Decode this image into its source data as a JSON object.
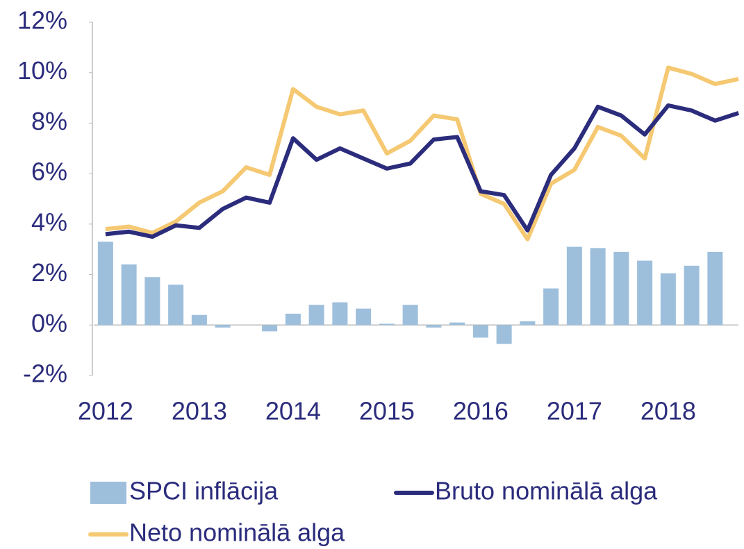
{
  "chart_data": {
    "type": "bar_line",
    "categories": [
      "2012",
      null,
      null,
      null,
      "2013",
      null,
      null,
      null,
      "2014",
      null,
      null,
      null,
      "2015",
      null,
      null,
      null,
      "2016",
      null,
      null,
      null,
      "2017",
      null,
      null,
      null,
      "2018",
      null,
      null,
      null
    ],
    "series": [
      {
        "name": "SPCI inflācija",
        "type": "bar",
        "color": "#9dbfdc",
        "values": [
          3.3,
          2.4,
          1.9,
          1.6,
          0.4,
          -0.1,
          0.0,
          -0.25,
          0.45,
          0.8,
          0.9,
          0.65,
          0.05,
          0.8,
          -0.1,
          0.1,
          -0.5,
          -0.75,
          0.15,
          1.45,
          3.1,
          3.05,
          2.9,
          2.55,
          2.05,
          2.35,
          2.9,
          null
        ]
      },
      {
        "name": "Bruto nominālā alga",
        "type": "line",
        "color": "#2b2c7c",
        "values": [
          3.6,
          3.7,
          3.5,
          3.95,
          3.85,
          4.6,
          5.05,
          4.85,
          7.4,
          6.55,
          7.0,
          6.6,
          6.2,
          6.4,
          7.35,
          7.45,
          5.3,
          5.15,
          3.75,
          5.95,
          7.0,
          8.65,
          8.3,
          7.55,
          8.7,
          8.5,
          8.1,
          8.4
        ]
      },
      {
        "name": "Neto nominālā alga",
        "type": "line",
        "color": "#f5c872",
        "values": [
          3.8,
          3.9,
          3.65,
          4.1,
          4.85,
          5.3,
          6.25,
          5.95,
          9.35,
          8.65,
          8.35,
          8.5,
          6.8,
          7.3,
          8.3,
          8.15,
          5.2,
          4.8,
          3.4,
          5.6,
          6.15,
          7.85,
          7.5,
          6.6,
          10.2,
          9.95,
          9.55,
          9.75
        ]
      }
    ],
    "ylim": [
      -2,
      12
    ],
    "yticks": [
      {
        "value": -2,
        "label": "-2%"
      },
      {
        "value": 0,
        "label": "0%"
      },
      {
        "value": 2,
        "label": "2%"
      },
      {
        "value": 4,
        "label": "4%"
      },
      {
        "value": 6,
        "label": "6%"
      },
      {
        "value": 8,
        "label": "8%"
      },
      {
        "value": 10,
        "label": "10%"
      },
      {
        "value": 12,
        "label": "12%"
      }
    ],
    "grid": false,
    "legend": "bottom"
  }
}
